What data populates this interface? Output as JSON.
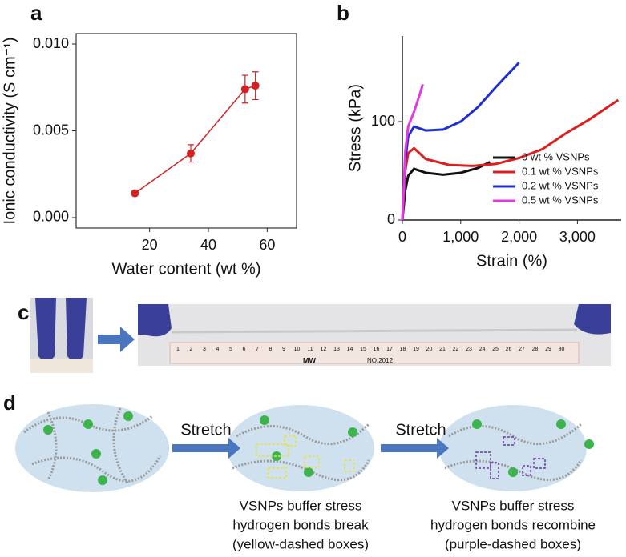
{
  "chart_data": [
    {
      "type": "line",
      "panel_label": "a",
      "x_label": "Water content  (wt %)",
      "y_label": "Ionic conductivity (S cm⁻¹)",
      "x": [
        15,
        34,
        52.5,
        56
      ],
      "values": [
        0.0014,
        0.0037,
        0.0074,
        0.0076
      ],
      "errors": [
        0.0001,
        0.0005,
        0.0008,
        0.0008
      ],
      "color": "#d42020",
      "frame": true,
      "xlim": [
        -5,
        70
      ],
      "xticks": [
        20,
        40,
        60
      ],
      "ylim": [
        -0.0006,
        0.0106
      ],
      "yticks": [
        {
          "value": 0,
          "label": "0.000"
        },
        {
          "value": 0.005,
          "label": "0.005"
        },
        {
          "value": 0.01,
          "label": "0.010"
        }
      ]
    },
    {
      "type": "line",
      "panel_label": "b",
      "x_label": "Strain (%)",
      "y_label": "Stress (kPa)",
      "frame": false,
      "legend": "lower-right",
      "xlim": [
        0,
        3750
      ],
      "xticks": [
        0,
        {
          "value": 1000,
          "label": "1,000"
        },
        {
          "value": 2000,
          "label": "2,000"
        },
        {
          "value": 3000,
          "label": "3,000"
        }
      ],
      "ylim": [
        0,
        187
      ],
      "yticks": [
        0,
        100
      ],
      "series": [
        {
          "name": "0 wt % VSNPs",
          "color": "#111111",
          "x": [
            0,
            50,
            100,
            200,
            400,
            700,
            1000,
            1300,
            1500
          ],
          "values": [
            0,
            30,
            45,
            52,
            48,
            46,
            48,
            53,
            59
          ]
        },
        {
          "name": "0.1 wt % VSNPs",
          "color": "#dd1f1f",
          "x": [
            0,
            50,
            100,
            200,
            400,
            800,
            1200,
            1600,
            2000,
            2400,
            2800,
            3200,
            3700
          ],
          "values": [
            0,
            50,
            68,
            73,
            62,
            56,
            55,
            57,
            63,
            72,
            88,
            102,
            122
          ]
        },
        {
          "name": "0.2 wt % VSNPs",
          "color": "#1f2fd6",
          "x": [
            0,
            50,
            100,
            200,
            400,
            700,
            1000,
            1300,
            1600,
            2000
          ],
          "values": [
            0,
            60,
            85,
            95,
            91,
            92,
            100,
            115,
            135,
            160
          ]
        },
        {
          "name": "0.5 wt % VSNPs",
          "color": "#e03ae0",
          "x": [
            0,
            50,
            100,
            200,
            300,
            350
          ],
          "values": [
            0,
            70,
            95,
            110,
            128,
            138
          ]
        }
      ]
    }
  ],
  "panel_c": {
    "label": "c",
    "ruler_text": "NO.2012",
    "ruler_brand": "MW",
    "ruler_numbers": [
      1,
      2,
      3,
      4,
      5,
      6,
      7,
      8,
      9,
      10,
      11,
      12,
      13,
      14,
      15,
      16,
      17,
      18,
      19,
      20,
      21,
      22,
      23,
      24,
      25,
      26,
      27,
      28,
      29,
      30
    ]
  },
  "panel_d": {
    "label": "d",
    "arrows": [
      "Stretch",
      "Stretch"
    ],
    "captions": [
      [
        "VSNPs buffer stress",
        "hydrogen bonds break",
        "(yellow-dashed boxes)"
      ],
      [
        "VSNPs buffer stress",
        "hydrogen bonds recombine",
        "(purple-dashed boxes)"
      ]
    ]
  }
}
